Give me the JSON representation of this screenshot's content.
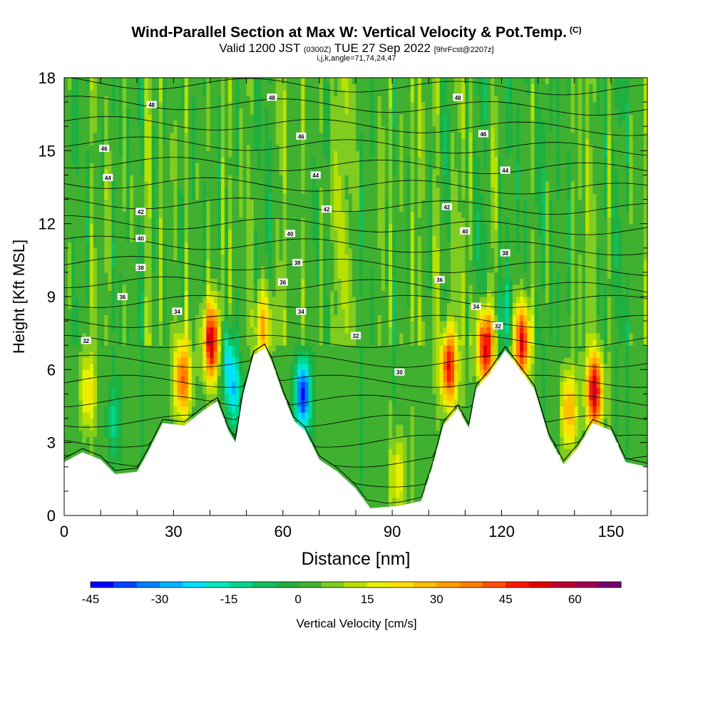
{
  "header": {
    "title": "Wind-Parallel Section at Max W: Vertical Velocity & Pot.Temp.",
    "copyright": "(C)",
    "valid_prefix": "Valid 1200 JST",
    "valid_zulu": "(0300Z)",
    "valid_date": "TUE 27 Sep 2022",
    "forecast_tag": "[9hrFcst@2207z]",
    "indices": "i,j,k,angle=71,74,24,47"
  },
  "chart_data": {
    "type": "heatmap",
    "title": "Wind-Parallel Section at Max W: Vertical Velocity & Pot.Temp.",
    "xlabel": "Distance [nm]",
    "ylabel": "Height [Kft MSL]",
    "xlim": [
      0,
      160
    ],
    "ylim": [
      0,
      18
    ],
    "x_ticks": [
      0,
      30,
      60,
      90,
      120,
      150
    ],
    "y_ticks": [
      0,
      3,
      6,
      9,
      12,
      15,
      18
    ],
    "colorbar": {
      "label": "Vertical Velocity [cm/s]",
      "ticks": [
        -45,
        -30,
        -15,
        0,
        15,
        30,
        45,
        60
      ],
      "range": [
        -45,
        70
      ],
      "step": 5,
      "colors": [
        "#0000ff",
        "#0044ff",
        "#0080ff",
        "#00b4ff",
        "#00e0ff",
        "#00e8c0",
        "#00d890",
        "#10c060",
        "#20b040",
        "#40b030",
        "#80cc20",
        "#b8e000",
        "#e8f000",
        "#ffe000",
        "#ffc000",
        "#ffa000",
        "#ff8000",
        "#ff5000",
        "#ff1800",
        "#e00000",
        "#c00030",
        "#a00050",
        "#780070"
      ]
    },
    "terrain": [
      [
        0,
        2.2
      ],
      [
        5,
        2.6
      ],
      [
        10,
        2.3
      ],
      [
        14,
        1.7
      ],
      [
        20,
        1.8
      ],
      [
        23,
        2.6
      ],
      [
        27,
        3.8
      ],
      [
        33,
        3.7
      ],
      [
        38,
        4.3
      ],
      [
        42,
        4.7
      ],
      [
        45,
        3.5
      ],
      [
        47,
        3.0
      ],
      [
        49,
        4.9
      ],
      [
        52,
        6.6
      ],
      [
        55,
        6.9
      ],
      [
        57,
        6.3
      ],
      [
        60,
        5.0
      ],
      [
        63,
        3.9
      ],
      [
        66,
        3.5
      ],
      [
        70,
        2.3
      ],
      [
        75,
        1.8
      ],
      [
        80,
        1.1
      ],
      [
        84,
        0.3
      ],
      [
        92,
        0.4
      ],
      [
        98,
        0.6
      ],
      [
        101,
        2.0
      ],
      [
        104,
        3.7
      ],
      [
        108,
        4.4
      ],
      [
        111,
        3.6
      ],
      [
        113,
        5.2
      ],
      [
        117,
        5.9
      ],
      [
        121,
        6.8
      ],
      [
        124,
        6.2
      ],
      [
        129,
        5.2
      ],
      [
        133,
        3.2
      ],
      [
        137,
        2.1
      ],
      [
        141,
        2.8
      ],
      [
        145,
        3.8
      ],
      [
        150,
        3.5
      ],
      [
        154,
        2.2
      ],
      [
        160,
        2.0
      ]
    ],
    "theta_labels": [
      {
        "text": "32",
        "x": 6,
        "y": 7.2
      },
      {
        "text": "34",
        "x": 31,
        "y": 8.4
      },
      {
        "text": "36",
        "x": 16,
        "y": 9.0
      },
      {
        "text": "38",
        "x": 21,
        "y": 10.2
      },
      {
        "text": "40",
        "x": 21,
        "y": 11.4
      },
      {
        "text": "42",
        "x": 21,
        "y": 12.5
      },
      {
        "text": "44",
        "x": 12,
        "y": 13.9
      },
      {
        "text": "46",
        "x": 11,
        "y": 15.1
      },
      {
        "text": "48",
        "x": 24,
        "y": 16.9
      },
      {
        "text": "48",
        "x": 57,
        "y": 17.2
      },
      {
        "text": "46",
        "x": 65,
        "y": 15.6
      },
      {
        "text": "44",
        "x": 69,
        "y": 14.0
      },
      {
        "text": "42",
        "x": 72,
        "y": 12.6
      },
      {
        "text": "40",
        "x": 62,
        "y": 11.6
      },
      {
        "text": "38",
        "x": 64,
        "y": 10.4
      },
      {
        "text": "36",
        "x": 60,
        "y": 9.6
      },
      {
        "text": "34",
        "x": 65,
        "y": 8.4
      },
      {
        "text": "32",
        "x": 80,
        "y": 7.4
      },
      {
        "text": "30",
        "x": 92,
        "y": 5.9
      },
      {
        "text": "36",
        "x": 103,
        "y": 9.7
      },
      {
        "text": "34",
        "x": 113,
        "y": 8.6
      },
      {
        "text": "32",
        "x": 119,
        "y": 7.8
      },
      {
        "text": "38",
        "x": 121,
        "y": 10.8
      },
      {
        "text": "40",
        "x": 110,
        "y": 11.7
      },
      {
        "text": "42",
        "x": 105,
        "y": 12.7
      },
      {
        "text": "44",
        "x": 121,
        "y": 14.2
      },
      {
        "text": "46",
        "x": 115,
        "y": 15.7
      },
      {
        "text": "48",
        "x": 108,
        "y": 17.2
      }
    ]
  }
}
